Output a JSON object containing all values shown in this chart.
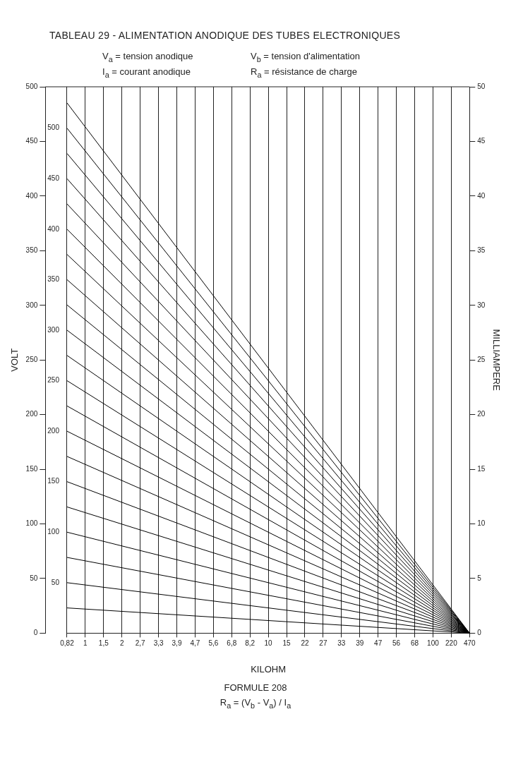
{
  "chart_data": {
    "type": "line",
    "title": "TABLEAU 29 - ALIMENTATION ANODIQUE DES TUBES ELECTRONIQUES",
    "annotations": [
      "V$_{a}$ = tension anodique",
      "I$_{a}$ = courant anodique",
      "V$_{b}$ = tension d'alimentation",
      "R$_{a}$ = résistance de charge",
      "FORMULE 208",
      "R$_{a}$ = (V$_{b}$ - V$_{a}$) / I$_{a}$"
    ],
    "xlabel": "KILOHM",
    "ylabel": "VOLT",
    "y3label": "MILLIAMPERE",
    "categories": [
      "0,82",
      "1",
      "1,5",
      "2",
      "2,7",
      "3,3",
      "3,9",
      "4,7",
      "5,6",
      "6,8",
      "8,2",
      "10",
      "15",
      "22",
      "27",
      "33",
      "39",
      "47",
      "56",
      "68",
      "100",
      "220",
      "470"
    ],
    "ylim": [
      0,
      500
    ],
    "yticks": [
      0,
      50,
      100,
      150,
      200,
      250,
      300,
      350,
      400,
      450,
      500
    ],
    "y2lim": [
      0,
      541
    ],
    "y2ticks": [
      50,
      100,
      150,
      200,
      250,
      300,
      350,
      400,
      450,
      500
    ],
    "y3lim": [
      0,
      50
    ],
    "y3ticks": [
      0,
      5,
      10,
      15,
      20,
      25,
      30,
      35,
      40,
      45,
      50
    ],
    "grid": "x",
    "legend": false,
    "series": [
      {
        "color": "#000000",
        "axis": "y2",
        "values": [
          25,
          null,
          null,
          null,
          null,
          null,
          null,
          null,
          null,
          null,
          null,
          null,
          null,
          null,
          null,
          null,
          null,
          null,
          null,
          null,
          null,
          null,
          0
        ]
      },
      {
        "color": "#000000",
        "axis": "y2",
        "values": [
          50,
          null,
          null,
          null,
          null,
          null,
          null,
          null,
          null,
          null,
          null,
          null,
          null,
          null,
          null,
          null,
          null,
          null,
          null,
          null,
          null,
          null,
          0
        ]
      },
      {
        "color": "#000000",
        "axis": "y2",
        "values": [
          75,
          null,
          null,
          null,
          null,
          null,
          null,
          null,
          null,
          null,
          null,
          null,
          null,
          null,
          null,
          null,
          null,
          null,
          null,
          null,
          null,
          null,
          0
        ]
      },
      {
        "color": "#000000",
        "axis": "y2",
        "values": [
          100,
          null,
          null,
          null,
          null,
          null,
          null,
          null,
          null,
          null,
          null,
          null,
          null,
          null,
          null,
          null,
          null,
          null,
          null,
          null,
          null,
          null,
          0
        ]
      },
      {
        "color": "#000000",
        "axis": "y2",
        "values": [
          125,
          null,
          null,
          null,
          null,
          null,
          null,
          null,
          null,
          null,
          null,
          null,
          null,
          null,
          null,
          null,
          null,
          null,
          null,
          null,
          null,
          null,
          0
        ]
      },
      {
        "color": "#000000",
        "axis": "y2",
        "values": [
          150,
          null,
          null,
          null,
          null,
          null,
          null,
          null,
          null,
          null,
          null,
          null,
          null,
          null,
          null,
          null,
          null,
          null,
          null,
          null,
          null,
          null,
          0
        ]
      },
      {
        "color": "#000000",
        "axis": "y2",
        "values": [
          175,
          null,
          null,
          null,
          null,
          null,
          null,
          null,
          null,
          null,
          null,
          null,
          null,
          null,
          null,
          null,
          null,
          null,
          null,
          null,
          null,
          null,
          0
        ]
      },
      {
        "color": "#000000",
        "axis": "y2",
        "values": [
          200,
          null,
          null,
          null,
          null,
          null,
          null,
          null,
          null,
          null,
          null,
          null,
          null,
          null,
          null,
          null,
          null,
          null,
          null,
          null,
          null,
          null,
          0
        ]
      },
      {
        "color": "#000000",
        "axis": "y2",
        "values": [
          225,
          null,
          null,
          null,
          null,
          null,
          null,
          null,
          null,
          null,
          null,
          null,
          null,
          null,
          null,
          null,
          null,
          null,
          null,
          null,
          null,
          null,
          0
        ]
      },
      {
        "color": "#000000",
        "axis": "y2",
        "values": [
          250,
          null,
          null,
          null,
          null,
          null,
          null,
          null,
          null,
          null,
          null,
          null,
          null,
          null,
          null,
          null,
          null,
          null,
          null,
          null,
          null,
          null,
          0
        ]
      },
      {
        "color": "#000000",
        "axis": "y2",
        "values": [
          275,
          null,
          null,
          null,
          null,
          null,
          null,
          null,
          null,
          null,
          null,
          null,
          null,
          null,
          null,
          null,
          null,
          null,
          null,
          null,
          null,
          null,
          0
        ]
      },
      {
        "color": "#000000",
        "axis": "y2",
        "values": [
          300,
          null,
          null,
          null,
          null,
          null,
          null,
          null,
          null,
          null,
          null,
          null,
          null,
          null,
          null,
          null,
          null,
          null,
          null,
          null,
          null,
          null,
          0
        ]
      },
      {
        "color": "#000000",
        "axis": "y2",
        "values": [
          325,
          null,
          null,
          null,
          null,
          null,
          null,
          null,
          null,
          null,
          null,
          null,
          null,
          null,
          null,
          null,
          null,
          null,
          null,
          null,
          null,
          null,
          0
        ]
      },
      {
        "color": "#000000",
        "axis": "y2",
        "values": [
          350,
          null,
          null,
          null,
          null,
          null,
          null,
          null,
          null,
          null,
          null,
          null,
          null,
          null,
          null,
          null,
          null,
          null,
          null,
          null,
          null,
          null,
          0
        ]
      },
      {
        "color": "#000000",
        "axis": "y2",
        "values": [
          375,
          null,
          null,
          null,
          null,
          null,
          null,
          null,
          null,
          null,
          null,
          null,
          null,
          null,
          null,
          null,
          null,
          null,
          null,
          null,
          null,
          null,
          0
        ]
      },
      {
        "color": "#000000",
        "axis": "y2",
        "values": [
          400,
          null,
          null,
          null,
          null,
          null,
          null,
          null,
          null,
          null,
          null,
          null,
          null,
          null,
          null,
          null,
          null,
          null,
          null,
          null,
          null,
          null,
          0
        ]
      },
      {
        "color": "#000000",
        "axis": "y2",
        "values": [
          425,
          null,
          null,
          null,
          null,
          null,
          null,
          null,
          null,
          null,
          null,
          null,
          null,
          null,
          null,
          null,
          null,
          null,
          null,
          null,
          null,
          null,
          0
        ]
      },
      {
        "color": "#000000",
        "axis": "y2",
        "values": [
          450,
          null,
          null,
          null,
          null,
          null,
          null,
          null,
          null,
          null,
          null,
          null,
          null,
          null,
          null,
          null,
          null,
          null,
          null,
          null,
          null,
          null,
          0
        ]
      },
      {
        "color": "#000000",
        "axis": "y2",
        "values": [
          475,
          null,
          null,
          null,
          null,
          null,
          null,
          null,
          null,
          null,
          null,
          null,
          null,
          null,
          null,
          null,
          null,
          null,
          null,
          null,
          null,
          null,
          0
        ]
      },
      {
        "color": "#000000",
        "axis": "y2",
        "values": [
          500,
          null,
          null,
          null,
          null,
          null,
          null,
          null,
          null,
          null,
          null,
          null,
          null,
          null,
          null,
          null,
          null,
          null,
          null,
          null,
          null,
          null,
          0
        ]
      },
      {
        "color": "#000000",
        "axis": "y2",
        "values": [
          525,
          null,
          null,
          null,
          null,
          null,
          null,
          null,
          null,
          null,
          null,
          null,
          null,
          null,
          null,
          null,
          null,
          null,
          null,
          null,
          null,
          null,
          0
        ]
      }
    ]
  }
}
